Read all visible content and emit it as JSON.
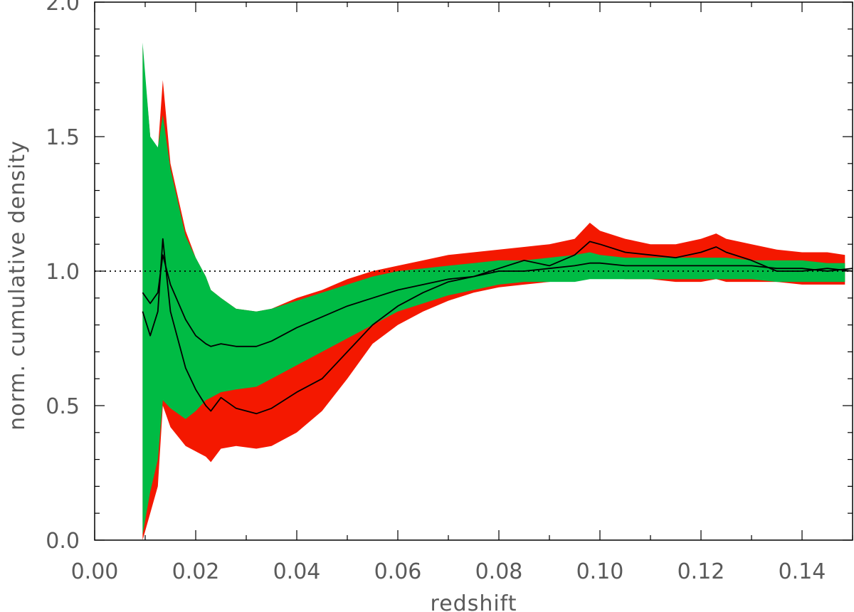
{
  "chart_data": {
    "type": "area",
    "title": "",
    "xlabel": "redshift",
    "ylabel": "norm. cumulative density",
    "xlim": [
      0.0,
      0.15
    ],
    "ylim": [
      0.0,
      2.0
    ],
    "x_ticks": [
      "0.00",
      "0.02",
      "0.04",
      "0.06",
      "0.08",
      "0.10",
      "0.12",
      "0.14"
    ],
    "y_ticks": [
      "0.0",
      "0.5",
      "1.0",
      "1.5",
      "2.0"
    ],
    "x_minor_step": 0.01,
    "y_minor_step": 0.1,
    "grid": false,
    "reference_line": {
      "y": 1.0,
      "style": "dotted"
    },
    "colors": {
      "band_red": "#f41800",
      "band_green": "#00bb44",
      "line": "#000000",
      "axis": "#000000",
      "text": "#5a5a5a"
    },
    "series": [
      {
        "kind": "band",
        "color": "red",
        "x": [
          0.0095,
          0.011,
          0.0125,
          0.0135,
          0.015,
          0.018,
          0.02,
          0.022,
          0.023,
          0.025,
          0.028,
          0.032,
          0.035,
          0.04,
          0.045,
          0.05,
          0.055,
          0.06,
          0.065,
          0.07,
          0.075,
          0.08,
          0.085,
          0.09,
          0.095,
          0.098,
          0.1,
          0.105,
          0.11,
          0.115,
          0.12,
          0.123,
          0.125,
          0.13,
          0.135,
          0.14,
          0.145,
          0.1485
        ],
        "upper": [
          1.83,
          1.5,
          1.45,
          1.71,
          1.4,
          1.15,
          1.05,
          0.98,
          0.93,
          0.9,
          0.86,
          0.85,
          0.86,
          0.9,
          0.93,
          0.97,
          1.0,
          1.02,
          1.04,
          1.06,
          1.07,
          1.08,
          1.09,
          1.1,
          1.12,
          1.18,
          1.15,
          1.12,
          1.1,
          1.1,
          1.12,
          1.14,
          1.12,
          1.1,
          1.08,
          1.07,
          1.07,
          1.06
        ],
        "lower": [
          0.0,
          0.1,
          0.2,
          0.5,
          0.42,
          0.35,
          0.33,
          0.31,
          0.29,
          0.34,
          0.35,
          0.34,
          0.35,
          0.4,
          0.48,
          0.6,
          0.73,
          0.8,
          0.85,
          0.89,
          0.92,
          0.94,
          0.95,
          0.96,
          0.97,
          0.98,
          0.98,
          0.97,
          0.97,
          0.96,
          0.96,
          0.97,
          0.96,
          0.96,
          0.96,
          0.95,
          0.95,
          0.95
        ]
      },
      {
        "kind": "band",
        "color": "green",
        "x": [
          0.0095,
          0.011,
          0.0125,
          0.0135,
          0.015,
          0.018,
          0.02,
          0.022,
          0.023,
          0.025,
          0.028,
          0.032,
          0.035,
          0.04,
          0.045,
          0.05,
          0.055,
          0.06,
          0.065,
          0.07,
          0.075,
          0.08,
          0.085,
          0.09,
          0.095,
          0.098,
          0.1,
          0.105,
          0.11,
          0.115,
          0.12,
          0.123,
          0.125,
          0.13,
          0.135,
          0.14,
          0.145,
          0.1485
        ],
        "upper": [
          1.85,
          1.5,
          1.46,
          1.58,
          1.38,
          1.13,
          1.05,
          0.98,
          0.93,
          0.9,
          0.86,
          0.85,
          0.86,
          0.89,
          0.92,
          0.95,
          0.98,
          1.0,
          1.01,
          1.02,
          1.03,
          1.04,
          1.04,
          1.05,
          1.06,
          1.07,
          1.06,
          1.05,
          1.05,
          1.05,
          1.05,
          1.05,
          1.05,
          1.04,
          1.04,
          1.04,
          1.03,
          1.03
        ],
        "lower": [
          0.02,
          0.18,
          0.3,
          0.52,
          0.49,
          0.45,
          0.48,
          0.52,
          0.53,
          0.55,
          0.56,
          0.57,
          0.6,
          0.65,
          0.7,
          0.75,
          0.8,
          0.85,
          0.88,
          0.91,
          0.93,
          0.95,
          0.96,
          0.96,
          0.96,
          0.97,
          0.97,
          0.97,
          0.97,
          0.97,
          0.97,
          0.97,
          0.97,
          0.97,
          0.96,
          0.96,
          0.96,
          0.96
        ]
      },
      {
        "kind": "line",
        "color": "black",
        "name": "",
        "x": [
          0.0095,
          0.011,
          0.0125,
          0.0135,
          0.015,
          0.018,
          0.02,
          0.022,
          0.023,
          0.025,
          0.028,
          0.032,
          0.035,
          0.04,
          0.045,
          0.05,
          0.055,
          0.06,
          0.065,
          0.07,
          0.075,
          0.08,
          0.085,
          0.09,
          0.095,
          0.098,
          0.1,
          0.105,
          0.11,
          0.115,
          0.12,
          0.123,
          0.125,
          0.13,
          0.135,
          0.14,
          0.145,
          0.15
        ],
        "y": [
          0.92,
          0.88,
          0.92,
          1.06,
          0.95,
          0.82,
          0.76,
          0.73,
          0.72,
          0.73,
          0.72,
          0.72,
          0.74,
          0.79,
          0.83,
          0.87,
          0.9,
          0.93,
          0.95,
          0.97,
          0.98,
          1.0,
          1.0,
          1.01,
          1.02,
          1.03,
          1.03,
          1.02,
          1.02,
          1.02,
          1.02,
          1.02,
          1.02,
          1.02,
          1.01,
          1.01,
          1.0,
          1.01
        ]
      },
      {
        "kind": "line",
        "color": "black",
        "name": "",
        "x": [
          0.0095,
          0.011,
          0.0125,
          0.0135,
          0.015,
          0.018,
          0.02,
          0.022,
          0.023,
          0.025,
          0.028,
          0.032,
          0.035,
          0.04,
          0.045,
          0.05,
          0.055,
          0.06,
          0.065,
          0.07,
          0.075,
          0.08,
          0.085,
          0.09,
          0.095,
          0.098,
          0.1,
          0.105,
          0.11,
          0.115,
          0.12,
          0.123,
          0.125,
          0.13,
          0.135,
          0.14,
          0.145,
          0.15
        ],
        "y": [
          0.85,
          0.76,
          0.85,
          1.12,
          0.85,
          0.64,
          0.56,
          0.5,
          0.48,
          0.53,
          0.49,
          0.47,
          0.49,
          0.55,
          0.6,
          0.7,
          0.8,
          0.87,
          0.92,
          0.96,
          0.98,
          1.01,
          1.04,
          1.02,
          1.06,
          1.11,
          1.1,
          1.07,
          1.06,
          1.05,
          1.07,
          1.09,
          1.07,
          1.04,
          1.0,
          1.0,
          1.01,
          1.0
        ]
      }
    ]
  }
}
